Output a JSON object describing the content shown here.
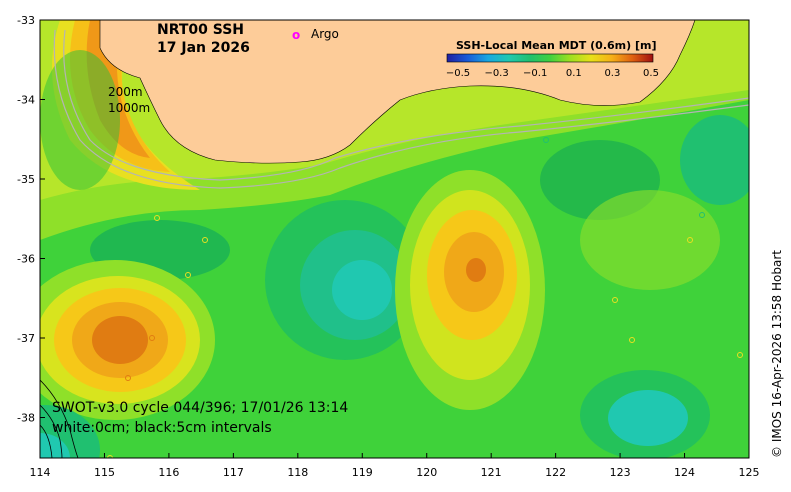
{
  "map": {
    "product": "NRT00 SSH",
    "date": "17 Jan 2026",
    "legend_argo": "Argo",
    "legend_argo_marker": "o",
    "depth_contour_1": "200m",
    "depth_contour_2": "1000m",
    "swot_info": "SWOT-v3.0 cycle 044/396; 17/01/26 13:14",
    "contour_info": "white:0cm; black:5cm intervals",
    "credit": "© IMOS 16-Apr-2026 13:58 Hobart",
    "x_ticks": [
      "114",
      "115",
      "116",
      "117",
      "118",
      "119",
      "120",
      "121",
      "122",
      "123",
      "124",
      "125"
    ],
    "y_ticks": [
      "-33",
      "-34",
      "-35",
      "-36",
      "-37",
      "-38"
    ],
    "colorbar": {
      "title": "SSH-Local Mean MDT (0.6m) [m]",
      "ticks": [
        "−0.5",
        "−0.3",
        "−0.1",
        "0.1",
        "0.3",
        "0.5"
      ],
      "colors": [
        "#2020a0",
        "#1a5bd8",
        "#19a8e0",
        "#20c8b0",
        "#20c070",
        "#30d040",
        "#7ee020",
        "#c8e818",
        "#f0d818",
        "#f6a818",
        "#e67010",
        "#c83010",
        "#8a1010"
      ]
    },
    "colors": {
      "land": "#fdcc99",
      "argo": "#ff00ff",
      "bathy": "#b4b4b4",
      "background_sea": "#28c840"
    }
  }
}
